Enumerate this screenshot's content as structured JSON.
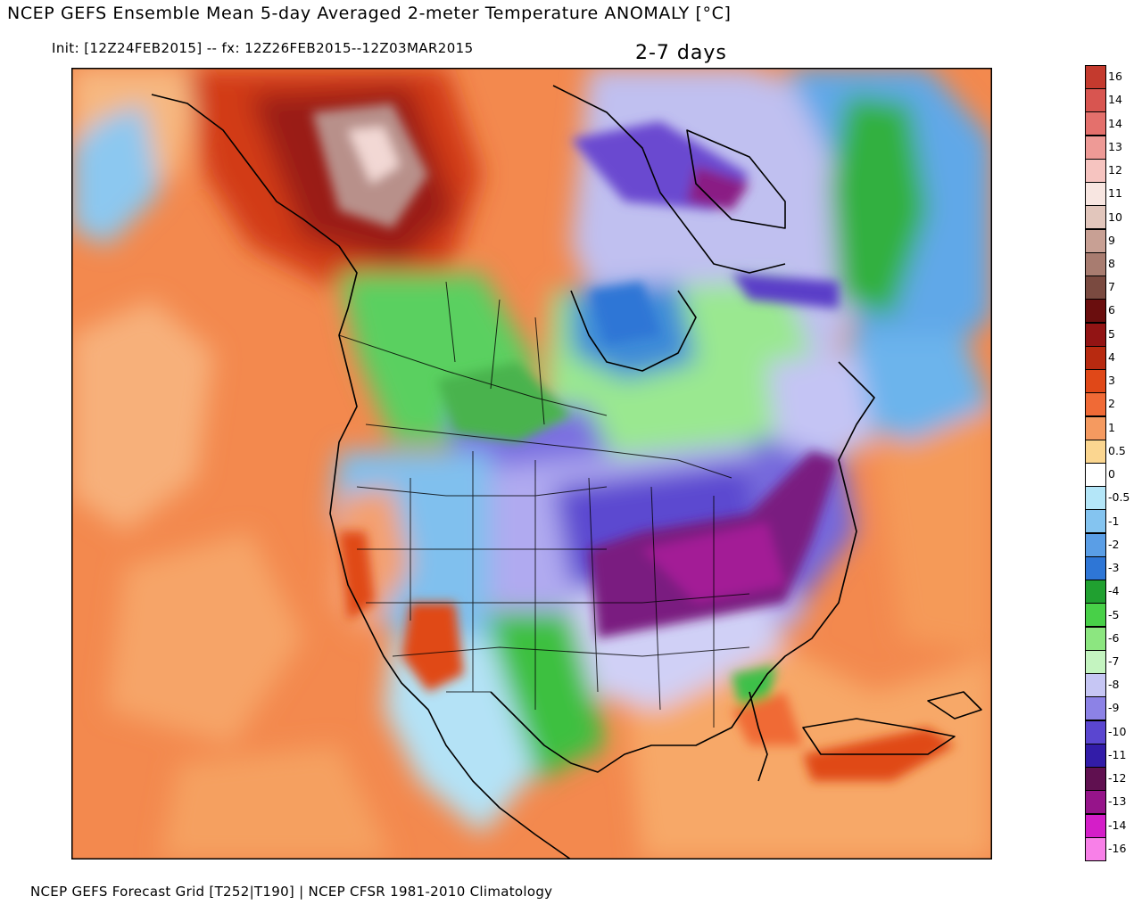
{
  "header": {
    "title": "NCEP GEFS Ensemble Mean 5-day Averaged 2-meter Temperature ANOMALY [°C]",
    "subtitle": "Init: [12Z24FEB2015] -- fx: 12Z26FEB2015--12Z03MAR2015",
    "period": "2-7 days"
  },
  "footer": {
    "source": "NCEP GEFS Forecast Grid [T252|T190] | NCEP CFSR 1981-2010 Climatology"
  },
  "map": {
    "region": "North America",
    "features": [
      "coastlines",
      "country borders",
      "state and province borders",
      "lakes"
    ],
    "anomalies": [
      {
        "region": "Alaska and Yukon",
        "anomaly": "warm",
        "level": 10
      },
      {
        "region": "Northeast Pacific Ocean",
        "anomaly": "warm",
        "level": 2
      },
      {
        "region": "Western US coast",
        "anomaly": "warm",
        "level": 2
      },
      {
        "region": "Baja California and Mexico",
        "anomaly": "warm",
        "level": 2
      },
      {
        "region": "Caribbean and Gulf of Mexico",
        "anomaly": "warm",
        "level": 2
      },
      {
        "region": "North Atlantic Ocean",
        "anomaly": "warm",
        "level": 2
      },
      {
        "region": "Greenland",
        "anomaly": "cold",
        "level": -5
      },
      {
        "region": "Canadian Arctic Archipelago",
        "anomaly": "cold",
        "level": -9
      },
      {
        "region": "Hudson Bay and Quebec",
        "anomaly": "cold",
        "level": -6
      },
      {
        "region": "Northern Plains",
        "anomaly": "cold",
        "level": -10
      },
      {
        "region": "Central and Southern Plains",
        "anomaly": "cold",
        "level": -9
      },
      {
        "region": "Ohio Valley and Mid-Atlantic",
        "anomaly": "cold",
        "level": -13
      },
      {
        "region": "Southeast US",
        "anomaly": "cold",
        "level": -7
      },
      {
        "region": "Gulf Coast and Texas",
        "anomaly": "cold",
        "level": -4
      },
      {
        "region": "Intermountain West",
        "anomaly": "mixed",
        "level": -2
      }
    ]
  },
  "legend": {
    "items": [
      {
        "label": "16",
        "color": "#c43a2e"
      },
      {
        "label": "14",
        "color": "#d85550"
      },
      {
        "label": "14",
        "color": "#e4706c"
      },
      {
        "label": "13",
        "color": "#ee9a96"
      },
      {
        "label": "12",
        "color": "#f6c4c0"
      },
      {
        "label": "11",
        "color": "#f8e6e1"
      },
      {
        "label": "10",
        "color": "#e2c6bc"
      },
      {
        "label": "9",
        "color": "#c8a094"
      },
      {
        "label": "8",
        "color": "#a87c70"
      },
      {
        "label": "7",
        "color": "#7a4a40"
      },
      {
        "label": "6",
        "color": "#6a0e0e"
      },
      {
        "label": "5",
        "color": "#921414"
      },
      {
        "label": "4",
        "color": "#b82a10"
      },
      {
        "label": "3",
        "color": "#e04818"
      },
      {
        "label": "2",
        "color": "#f06a36"
      },
      {
        "label": "1",
        "color": "#f59a60"
      },
      {
        "label": "0.5",
        "color": "#fbd690"
      },
      {
        "label": "0",
        "color": "#ffffff"
      },
      {
        "label": "-0.5",
        "color": "#b4e6f8"
      },
      {
        "label": "-1",
        "color": "#84c4f0"
      },
      {
        "label": "-2",
        "color": "#5a9ee6"
      },
      {
        "label": "-3",
        "color": "#2e76d6"
      },
      {
        "label": "-4",
        "color": "#20a030"
      },
      {
        "label": "-5",
        "color": "#48d048"
      },
      {
        "label": "-6",
        "color": "#8ce680"
      },
      {
        "label": "-7",
        "color": "#c4f4c0"
      },
      {
        "label": "-8",
        "color": "#c6c6f4"
      },
      {
        "label": "-9",
        "color": "#8c82e6"
      },
      {
        "label": "-10",
        "color": "#5a46d0"
      },
      {
        "label": "-11",
        "color": "#321ca8"
      },
      {
        "label": "-12",
        "color": "#601050"
      },
      {
        "label": "-13",
        "color": "#96148a"
      },
      {
        "label": "-14",
        "color": "#d41ec8"
      },
      {
        "label": "-16",
        "color": "#f880e8"
      }
    ]
  }
}
